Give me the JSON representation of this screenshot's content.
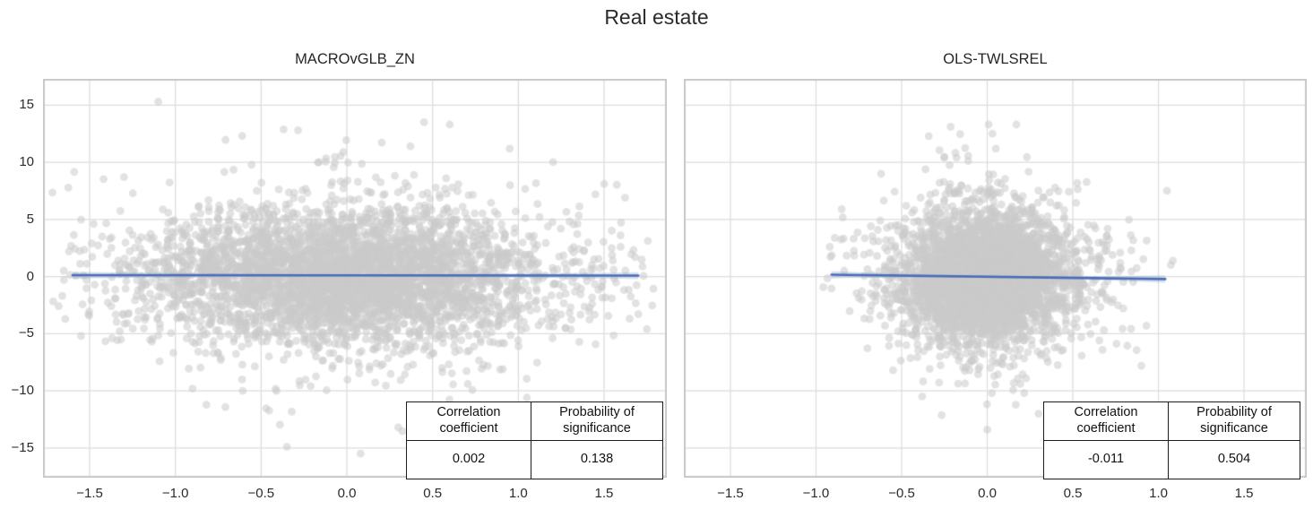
{
  "figure": {
    "title": "Real estate"
  },
  "style": {
    "background": "#ffffff",
    "grid_color": "#dcdcdc",
    "spine_color": "#c8c8c8",
    "marker_color": "rgba(203,203,203,0.55)",
    "regression_line_color": "#4a6db8",
    "regression_band_color": "rgba(118,146,199,0.28)",
    "text_color": "#2b2b2b"
  },
  "chart_data": [
    {
      "type": "scatter",
      "title": "MACROvGLB_ZN",
      "xlim": [
        -1.772,
        1.866
      ],
      "ylim": [
        -17.6,
        17.3
      ],
      "grid": true,
      "x_ticks": [
        -1.5,
        -1.0,
        -0.5,
        0.0,
        0.5,
        1.0,
        1.5
      ],
      "x_tick_labels": [
        "−1.5",
        "−1.0",
        "−0.5",
        "0.0",
        "0.5",
        "1.0",
        "1.5"
      ],
      "y_ticks": [
        15,
        10,
        5,
        0,
        -5,
        -10,
        -15
      ],
      "y_tick_labels": [
        "15",
        "10",
        "5",
        "0",
        "−5",
        "−10",
        "−15"
      ],
      "points": {
        "n": 4300,
        "seed": 11,
        "x_mean": 0,
        "x_core_std": 0.58,
        "x_tail_std": 0.95,
        "x_tail_frac": 0.12,
        "x_clip": [
          -1.72,
          1.8
        ],
        "y_mean": 0,
        "y_core_std": 2.9,
        "y_tail_std": 5.8,
        "y_tail_frac": 0.09,
        "y_clip": [
          -15.6,
          15.5
        ],
        "marker_radius": 4.4
      },
      "outlier_points": [
        [
          -1.1,
          15.3
        ],
        [
          0.45,
          13.5
        ],
        [
          0.6,
          13.3
        ],
        [
          0.95,
          11.2
        ],
        [
          -0.02,
          10.9
        ],
        [
          -1.3,
          8.7
        ],
        [
          1.45,
          7.2
        ],
        [
          1.7,
          -3.3
        ],
        [
          1.75,
          -4.6
        ],
        [
          -1.65,
          -0.3
        ],
        [
          -1.55,
          -5.2
        ],
        [
          -0.9,
          -9.8
        ],
        [
          0.3,
          -13.2
        ],
        [
          -0.35,
          -14.9
        ],
        [
          0.08,
          -15.5
        ],
        [
          1.05,
          -10.6
        ]
      ],
      "regression": {
        "x1": -1.6,
        "y1": 0.12,
        "x2": 1.7,
        "y2": 0.08,
        "band_half_width_ends": 0.3,
        "band_half_width_mid": 0.12
      },
      "table": {
        "headers": [
          "Correlation coefficient",
          "Probability of significance"
        ],
        "values": [
          "0.002",
          "0.138"
        ]
      }
    },
    {
      "type": "scatter",
      "title": "OLS-TWLSREL",
      "xlim": [
        -1.772,
        1.866
      ],
      "ylim": [
        -17.6,
        17.3
      ],
      "grid": true,
      "x_ticks": [
        -1.5,
        -1.0,
        -0.5,
        0.0,
        0.5,
        1.0,
        1.5
      ],
      "x_tick_labels": [
        "−1.5",
        "−1.0",
        "−0.5",
        "0.0",
        "0.5",
        "1.0",
        "1.5"
      ],
      "y_ticks": [
        15,
        10,
        5,
        0,
        -5,
        -10,
        -15
      ],
      "y_tick_labels": [],
      "points": {
        "n": 3900,
        "seed": 29,
        "x_mean": 0,
        "x_core_std": 0.25,
        "x_tail_std": 0.48,
        "x_tail_frac": 0.1,
        "x_clip": [
          -0.97,
          1.1
        ],
        "y_mean": 0,
        "y_core_std": 2.9,
        "y_tail_std": 5.4,
        "y_tail_frac": 0.09,
        "y_clip": [
          -13.5,
          13.5
        ],
        "marker_radius": 4.4
      },
      "outlier_points": [
        [
          0.17,
          13.3
        ],
        [
          0.05,
          11.2
        ],
        [
          -0.25,
          10.4
        ],
        [
          1.05,
          7.5
        ],
        [
          -0.62,
          9.0
        ],
        [
          -0.85,
          5.9
        ],
        [
          -0.92,
          2.6
        ],
        [
          0.0,
          -13.4
        ],
        [
          0.3,
          -12.0
        ],
        [
          -0.55,
          -8.2
        ],
        [
          0.9,
          -7.8
        ],
        [
          -0.38,
          -10.5
        ]
      ],
      "regression": {
        "x1": -0.91,
        "y1": 0.16,
        "x2": 1.04,
        "y2": -0.22,
        "band_half_width_ends": 0.32,
        "band_half_width_mid": 0.1
      },
      "table": {
        "headers": [
          "Correlation coefficient",
          "Probability of significance"
        ],
        "values": [
          "-0.011",
          "0.504"
        ]
      }
    }
  ]
}
